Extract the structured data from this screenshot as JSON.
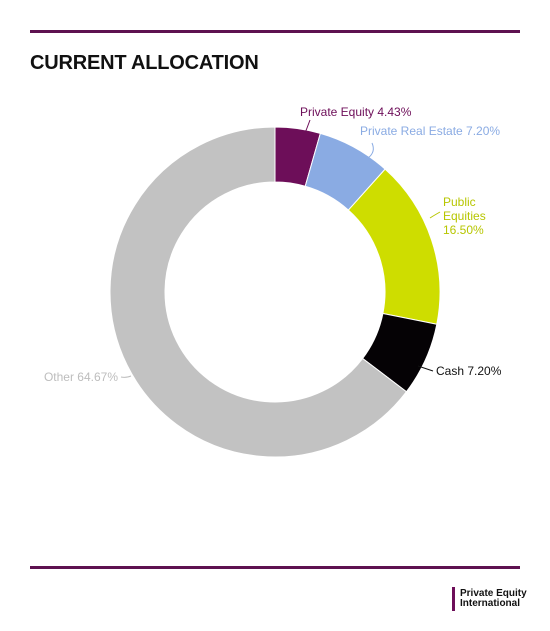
{
  "page": {
    "title": "CURRENT ALLOCATION",
    "accent": "#5e1150"
  },
  "chart_data": {
    "type": "pie",
    "style": "donut",
    "title": "CURRENT ALLOCATION",
    "slices": [
      {
        "name": "Private Equity",
        "value": 4.43,
        "label": "Private Equity 4.43%",
        "color": "#6d0e59",
        "labelColor": "#6d0e59"
      },
      {
        "name": "Private Real Estate",
        "value": 7.2,
        "label": "Private Real Estate 7.20%",
        "color": "#8aabe3",
        "labelColor": "#8aabe3"
      },
      {
        "name": "Public Equities",
        "value": 16.5,
        "label": "Public Equities 16.50%",
        "color": "#cedd00",
        "labelColor": "#b7c600"
      },
      {
        "name": "Cash",
        "value": 7.2,
        "label": "Cash 7.20%",
        "color": "#050205",
        "labelColor": "#111111"
      },
      {
        "name": "Other",
        "value": 64.67,
        "label": "Other 64.67%",
        "color": "#c2c2c2",
        "labelColor": "#bdbdbd"
      }
    ]
  },
  "logo": {
    "line1": "Private Equity",
    "line2": "International",
    "bar_color": "#6d0e59"
  }
}
